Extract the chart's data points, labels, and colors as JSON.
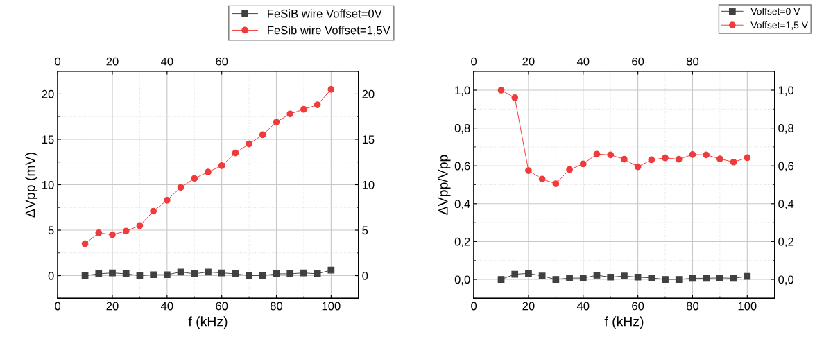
{
  "chart_data": [
    {
      "type": "line",
      "xlabel": "f (kHz)",
      "ylabel": "ΔVpp (mV)",
      "legend": "top right",
      "grid": true,
      "x": [
        10,
        15,
        20,
        25,
        30,
        35,
        40,
        45,
        50,
        55,
        60,
        65,
        70,
        75,
        80,
        85,
        90,
        95,
        100
      ],
      "series": [
        {
          "name": "FeSiB wire Voffset=0V",
          "color": "#404040",
          "marker": "square",
          "values": [
            0,
            0.2,
            0.3,
            0.2,
            0,
            0.1,
            0.1,
            0.4,
            0.2,
            0.4,
            0.3,
            0.2,
            0,
            0,
            0.2,
            0.2,
            0.3,
            0.2,
            0.6
          ]
        },
        {
          "name": "FeSib wire Voffset=1,5V",
          "color": "#ef3b3b",
          "marker": "circle",
          "values": [
            3.5,
            4.7,
            4.5,
            4.9,
            5.5,
            7.1,
            8.3,
            9.7,
            10.7,
            11.4,
            12.1,
            13.5,
            14.5,
            15.5,
            16.9,
            17.8,
            18.3,
            18.8,
            20.5
          ]
        }
      ],
      "xlim": [
        0,
        110
      ],
      "xticks": [
        0,
        20,
        40,
        60,
        80,
        100
      ],
      "x2lim": [
        0,
        110
      ],
      "x2ticks": [
        0,
        20,
        40,
        60
      ],
      "ylim": [
        -2.5,
        22.5
      ],
      "yticks": [
        0,
        5,
        10,
        15,
        20
      ],
      "y2lim": [
        -2.5,
        22.5
      ],
      "y2ticks": [
        0,
        5,
        10,
        15,
        20
      ]
    },
    {
      "type": "line",
      "xlabel": "f (kHz)",
      "ylabel": "ΔVpp/Vpp",
      "legend": "top right",
      "grid": true,
      "x": [
        10,
        15,
        20,
        25,
        30,
        35,
        40,
        45,
        50,
        55,
        60,
        65,
        70,
        75,
        80,
        85,
        90,
        95,
        100
      ],
      "series": [
        {
          "name": "Voffset=0 V",
          "color": "#404040",
          "marker": "square",
          "values": [
            0,
            0.027,
            0.032,
            0.018,
            0,
            0.007,
            0.007,
            0.022,
            0.012,
            0.018,
            0.012,
            0.008,
            0,
            0,
            0.006,
            0.006,
            0.008,
            0.006,
            0.016
          ]
        },
        {
          "name": "Voffset=1,5 V",
          "color": "#ef3b3b",
          "marker": "circle",
          "values": [
            1.0,
            0.96,
            0.575,
            0.53,
            0.505,
            0.58,
            0.61,
            0.662,
            0.658,
            0.635,
            0.595,
            0.632,
            0.642,
            0.635,
            0.66,
            0.658,
            0.637,
            0.62,
            0.643
          ]
        }
      ],
      "xlim": [
        0,
        110
      ],
      "xticks": [
        0,
        20,
        40,
        60,
        80,
        100
      ],
      "x2lim": [
        0,
        110
      ],
      "x2ticks": [
        0,
        20,
        40,
        60,
        80
      ],
      "ylim": [
        -0.1,
        1.1
      ],
      "yticks": [
        {
          "value": 0,
          "label": "0,0"
        },
        {
          "value": 0.2,
          "label": "0,2"
        },
        {
          "value": 0.4,
          "label": "0,4"
        },
        {
          "value": 0.6,
          "label": "0,6"
        },
        {
          "value": 0.8,
          "label": "0,8"
        },
        {
          "value": 1.0,
          "label": "1,0"
        }
      ],
      "y2lim": [
        -0.1,
        1.1
      ],
      "y2ticks": [
        {
          "value": 0,
          "label": "0,0"
        },
        {
          "value": 0.2,
          "label": "0,2"
        },
        {
          "value": 0.4,
          "label": "0,4"
        },
        {
          "value": 0.6,
          "label": "0,6"
        },
        {
          "value": 0.8,
          "label": "0,8"
        },
        {
          "value": 1.0,
          "label": "1,0"
        }
      ]
    }
  ]
}
